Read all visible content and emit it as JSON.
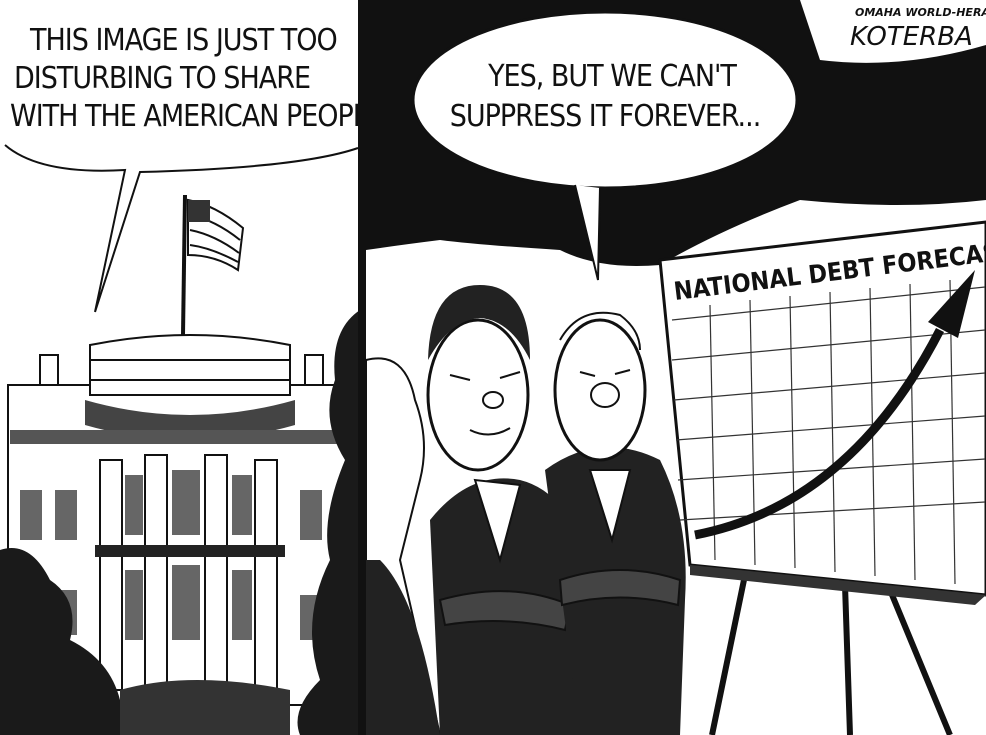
{
  "panels": [
    {
      "speech": {
        "lines": [
          "THIS IMAGE IS JUST TOO",
          "DISTURBING TO SHARE",
          "WITH THE AMERICAN PEOPLE."
        ]
      }
    },
    {
      "speech": {
        "lines": [
          "YES, BUT WE CAN'T",
          "SUPPRESS IT FOREVER..."
        ]
      },
      "chart_board": {
        "title": "NATIONAL DEBT FORECAST"
      }
    }
  ],
  "signature": {
    "publication": "OMAHA WORLD-HERALD",
    "artist": "KOTERBA"
  }
}
